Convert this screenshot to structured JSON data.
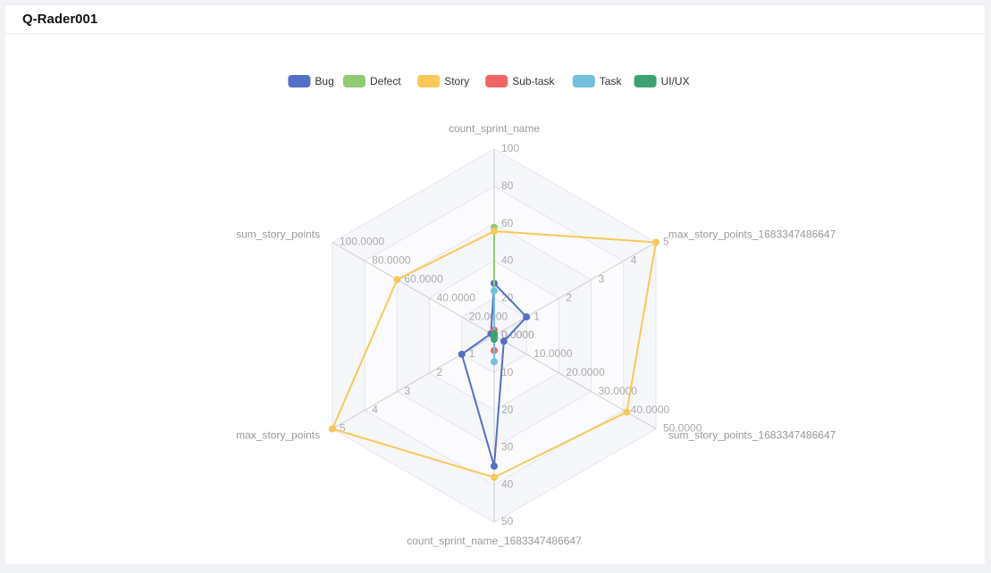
{
  "header": {
    "title": "Q-Rader001"
  },
  "chart_data": {
    "type": "radar",
    "indicators": [
      {
        "name": "count_sprint_name",
        "range": [
          0,
          100
        ],
        "ticks": [
          0,
          20,
          40,
          60,
          80,
          100
        ]
      },
      {
        "name": "max_story_points_1683347486647",
        "range": [
          0,
          5
        ],
        "ticks": [
          0,
          1,
          2,
          3,
          4,
          5
        ]
      },
      {
        "name": "sum_story_points_1683347486647",
        "range": [
          0,
          50
        ],
        "ticks": [
          {
            "value": 0,
            "label": "0.0000"
          },
          {
            "value": 10,
            "label": "10.0000"
          },
          {
            "value": 20,
            "label": "20.0000"
          },
          {
            "value": 30,
            "label": "30.0000"
          },
          {
            "value": 40,
            "label": "40.0000"
          },
          {
            "value": 50,
            "label": "50.0000"
          }
        ]
      },
      {
        "name": "count_sprint_name_1683347486647",
        "range": [
          0,
          50
        ],
        "ticks": [
          0,
          10,
          20,
          30,
          40,
          50
        ]
      },
      {
        "name": "max_story_points",
        "range": [
          0,
          5
        ],
        "ticks": [
          0,
          1,
          2,
          3,
          4,
          5
        ]
      },
      {
        "name": "sum_story_points",
        "range": [
          0,
          100
        ],
        "ticks": [
          {
            "value": 0,
            "label": "0.0000"
          },
          {
            "value": 20,
            "label": "20.0000"
          },
          {
            "value": 40,
            "label": "40.0000"
          },
          {
            "value": 60,
            "label": "60.0000"
          },
          {
            "value": 80,
            "label": "80.0000"
          },
          {
            "value": 100,
            "label": "100.0000"
          }
        ]
      }
    ],
    "series": [
      {
        "name": "Bug",
        "color": "#5470c6",
        "values": [
          28,
          1,
          3,
          35,
          1,
          2
        ]
      },
      {
        "name": "Defect",
        "color": "#91cc75",
        "values": [
          58,
          0,
          0,
          0,
          0,
          0
        ]
      },
      {
        "name": "Story",
        "color": "#fac858",
        "values": [
          56,
          5,
          41,
          38,
          5,
          60
        ]
      },
      {
        "name": "Sub-task",
        "color": "#ee6666",
        "values": [
          3,
          0,
          0,
          4,
          0,
          0
        ]
      },
      {
        "name": "Task",
        "color": "#73c0de",
        "values": [
          24,
          0,
          0,
          7,
          0,
          0
        ]
      },
      {
        "name": "UI/UX",
        "color": "#3ba272",
        "values": [
          1,
          0,
          0,
          1,
          0,
          0
        ]
      }
    ]
  }
}
